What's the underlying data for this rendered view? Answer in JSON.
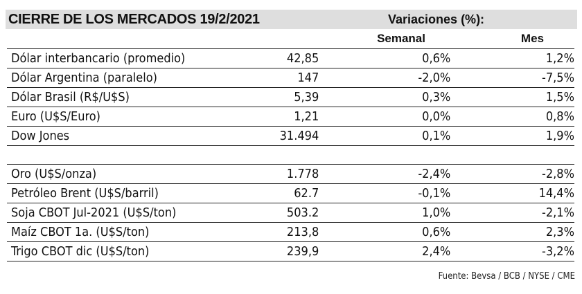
{
  "title": "CIERRE DE LOS MERCADOS 19/2/2021",
  "variations_header": "Variaciones (%):",
  "columns": {
    "weekly": "Semanal",
    "monthly": "Mes"
  },
  "rows_group1": [
    {
      "name": "Dólar interbancario (promedio)",
      "value": "42,85",
      "weekly": "0,6%",
      "monthly": "1,2%"
    },
    {
      "name": "Dólar Argentina (paralelo)",
      "value": "147",
      "weekly": "-2,0%",
      "monthly": "-7,5%"
    },
    {
      "name": "Dólar Brasil (R$/U$S)",
      "value": "5,39",
      "weekly": "0,3%",
      "monthly": "1,5%"
    },
    {
      "name": "Euro (U$S/Euro)",
      "value": "1,21",
      "weekly": "0,0%",
      "monthly": "0,8%"
    },
    {
      "name": "Dow Jones",
      "value": "31.494",
      "weekly": "0,1%",
      "monthly": "1,9%"
    }
  ],
  "rows_group2": [
    {
      "name": "Oro (U$S/onza)",
      "value": "1.778",
      "weekly": "-2,4%",
      "monthly": "-2,8%"
    },
    {
      "name": "Petróleo Brent (U$S/barril)",
      "value": "62.7",
      "weekly": "-0,1%",
      "monthly": "14,4%"
    },
    {
      "name": "Soja CBOT Jul-2021 (U$S/ton)",
      "value": "503.2",
      "weekly": "1,0%",
      "monthly": "-2,1%"
    },
    {
      "name": "Maíz CBOT 1a. (U$S/ton)",
      "value": "213,8",
      "weekly": "0,6%",
      "monthly": "2,3%"
    },
    {
      "name": "Trigo CBOT dic (U$S/ton)",
      "value": "239,9",
      "weekly": "2,4%",
      "monthly": "-3,2%"
    }
  ],
  "source": "Fuente: Bevsa / BCB / NYSE / CME"
}
